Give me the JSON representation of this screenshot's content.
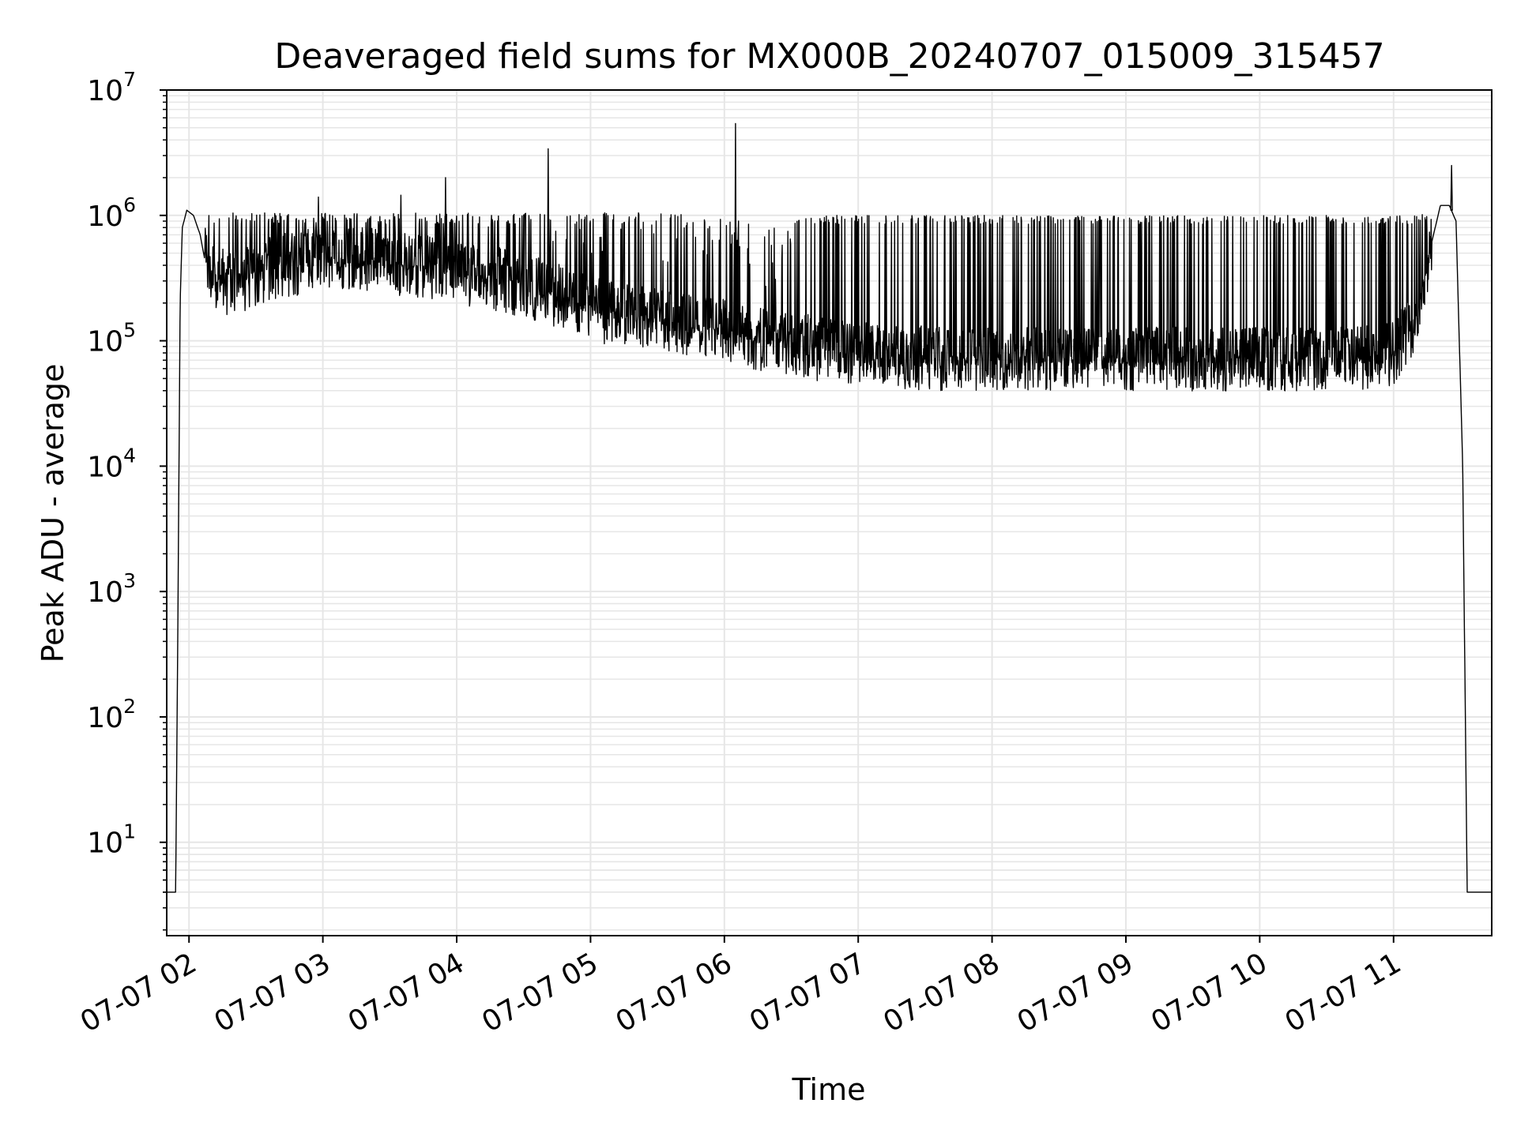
{
  "chart_data": {
    "type": "line",
    "title": "Deaveraged field sums for MX000B_20240707_015009_315457",
    "xlabel": "Time",
    "ylabel": "Peak ADU - average",
    "yscale": "log",
    "ylim": [
      1.8,
      10000000
    ],
    "xlim": [
      "07-07 01:50",
      "07-07 11:44"
    ],
    "grid": {
      "major": true,
      "minor_y": true
    },
    "line_color": "#000000",
    "grid_color": "#e6e6e6",
    "x_tick_labels": [
      "07-07 02",
      "07-07 03",
      "07-07 04",
      "07-07 05",
      "07-07 06",
      "07-07 07",
      "07-07 08",
      "07-07 09",
      "07-07 10",
      "07-07 11"
    ],
    "x_ticks": [
      "07-07 02:00",
      "07-07 03:00",
      "07-07 04:00",
      "07-07 05:00",
      "07-07 06:00",
      "07-07 07:00",
      "07-07 08:00",
      "07-07 09:00",
      "07-07 10:00",
      "07-07 11:00"
    ],
    "y_ticks": [
      {
        "value": 10,
        "base": "10",
        "exp": "1"
      },
      {
        "value": 100,
        "base": "10",
        "exp": "2"
      },
      {
        "value": 1000,
        "base": "10",
        "exp": "3"
      },
      {
        "value": 10000,
        "base": "10",
        "exp": "4"
      },
      {
        "value": 100000,
        "base": "10",
        "exp": "5"
      },
      {
        "value": 1000000,
        "base": "10",
        "exp": "6"
      },
      {
        "value": 10000000,
        "base": "10",
        "exp": "7"
      }
    ],
    "series": [
      {
        "x": [
          "07-07 01:50",
          "07-07 01:54",
          "07-07 01:55",
          "07-07 01:56",
          "07-07 01:57",
          "07-07 01:59",
          "07-07 02:02",
          "07-07 02:05",
          "07-07 02:07",
          "07-07 02:10",
          "07-07 02:15",
          "07-07 02:20",
          "07-07 02:30",
          "07-07 02:40",
          "07-07 02:50",
          "07-07 03:00",
          "07-07 03:10",
          "07-07 03:20",
          "07-07 03:30",
          "07-07 03:40",
          "07-07 03:50",
          "07-07 04:00",
          "07-07 04:15",
          "07-07 04:30",
          "07-07 04:45",
          "07-07 05:00",
          "07-07 05:15",
          "07-07 05:30",
          "07-07 05:45",
          "07-07 06:00",
          "07-07 06:15",
          "07-07 06:30",
          "07-07 06:45",
          "07-07 07:00",
          "07-07 07:15",
          "07-07 07:30",
          "07-07 07:45",
          "07-07 08:00",
          "07-07 08:15",
          "07-07 08:30",
          "07-07 08:45",
          "07-07 09:00",
          "07-07 09:15",
          "07-07 09:30",
          "07-07 09:45",
          "07-07 10:00",
          "07-07 10:15",
          "07-07 10:30",
          "07-07 10:45",
          "07-07 11:00",
          "07-07 11:10",
          "07-07 11:17",
          "07-07 11:21",
          "07-07 11:25",
          "07-07 11:28",
          "07-07 11:31",
          "07-07 11:33",
          "07-07 11:35",
          "07-07 11:44"
        ],
        "y": [
          4,
          4,
          500,
          200000,
          800000,
          1100000,
          1000000,
          700000,
          450000,
          350000,
          300000,
          280000,
          330000,
          400000,
          420000,
          450000,
          460000,
          450000,
          430000,
          400000,
          380000,
          350000,
          320000,
          280000,
          230000,
          180000,
          160000,
          145000,
          130000,
          120000,
          105000,
          95000,
          85000,
          78000,
          75000,
          73000,
          72000,
          72000,
          72000,
          72000,
          72000,
          72000,
          72000,
          72000,
          72000,
          72000,
          72000,
          72000,
          72000,
          80000,
          150000,
          600000,
          1200000,
          1200000,
          900000,
          10000,
          4,
          4,
          4
        ]
      }
    ]
  }
}
